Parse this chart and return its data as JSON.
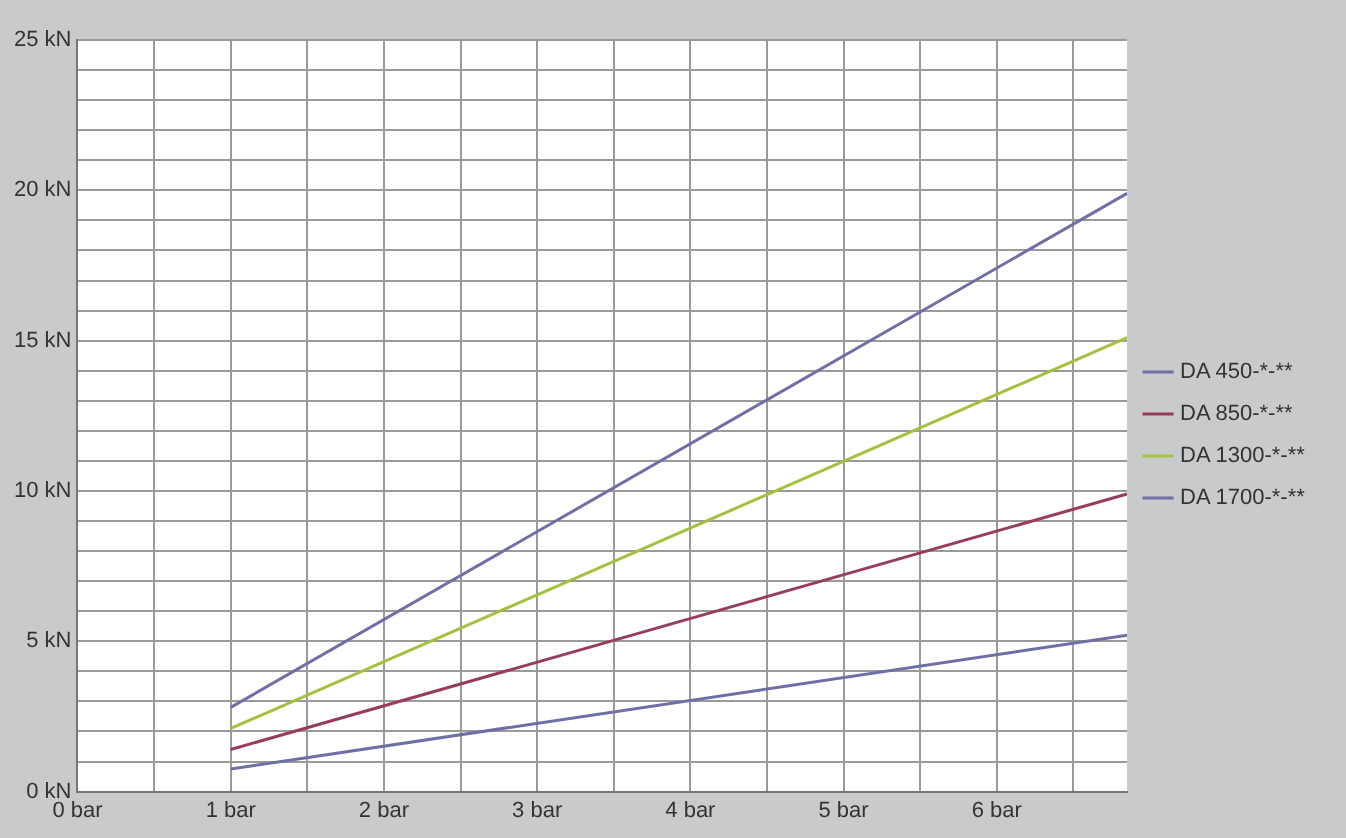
{
  "chart_data": {
    "type": "line",
    "x": [
      1,
      6.85
    ],
    "series": [
      {
        "name": "DA 450-*-**",
        "color": "#6f6fa6",
        "values": [
          0.75,
          5.2
        ]
      },
      {
        "name": "DA 850-*-**",
        "color": "#983c5e",
        "values": [
          1.4,
          9.9
        ]
      },
      {
        "name": "DA 1300-*-**",
        "color": "#a2c23e",
        "values": [
          2.1,
          15.1
        ]
      },
      {
        "name": "DA 1700-*-**",
        "color": "#6f6fa6",
        "values": [
          2.8,
          19.9
        ]
      }
    ],
    "xlim": [
      0,
      6.85
    ],
    "xticks": [
      {
        "value": 0,
        "label": "0 bar"
      },
      {
        "value": 0.5,
        "label": null
      },
      {
        "value": 1,
        "label": "1 bar"
      },
      {
        "value": 1.5,
        "label": null
      },
      {
        "value": 2,
        "label": "2 bar"
      },
      {
        "value": 2.5,
        "label": null
      },
      {
        "value": 3,
        "label": "3 bar"
      },
      {
        "value": 3.5,
        "label": null
      },
      {
        "value": 4,
        "label": "4 bar"
      },
      {
        "value": 4.5,
        "label": null
      },
      {
        "value": 5,
        "label": "5 bar"
      },
      {
        "value": 5.5,
        "label": null
      },
      {
        "value": 6,
        "label": "6 bar"
      },
      {
        "value": 6.5,
        "label": null
      }
    ],
    "ylim": [
      0,
      25
    ],
    "yticks": [
      {
        "value": 0,
        "label": "0 kN"
      },
      {
        "value": 1,
        "label": null
      },
      {
        "value": 2,
        "label": null
      },
      {
        "value": 3,
        "label": null
      },
      {
        "value": 4,
        "label": null
      },
      {
        "value": 5,
        "label": "5 kN"
      },
      {
        "value": 6,
        "label": null
      },
      {
        "value": 7,
        "label": null
      },
      {
        "value": 8,
        "label": null
      },
      {
        "value": 9,
        "label": null
      },
      {
        "value": 10,
        "label": "10 kN"
      },
      {
        "value": 11,
        "label": null
      },
      {
        "value": 12,
        "label": null
      },
      {
        "value": 13,
        "label": null
      },
      {
        "value": 14,
        "label": null
      },
      {
        "value": 15,
        "label": "15 kN"
      },
      {
        "value": 16,
        "label": null
      },
      {
        "value": 17,
        "label": null
      },
      {
        "value": 18,
        "label": null
      },
      {
        "value": 19,
        "label": null
      },
      {
        "value": 20,
        "label": "20 kN"
      },
      {
        "value": 21,
        "label": null
      },
      {
        "value": 22,
        "label": null
      },
      {
        "value": 23,
        "label": null
      },
      {
        "value": 24,
        "label": null
      },
      {
        "value": 25,
        "label": "25 kN"
      }
    ],
    "grid": true,
    "legend": "right",
    "marker": "none",
    "line_style": "solid"
  }
}
